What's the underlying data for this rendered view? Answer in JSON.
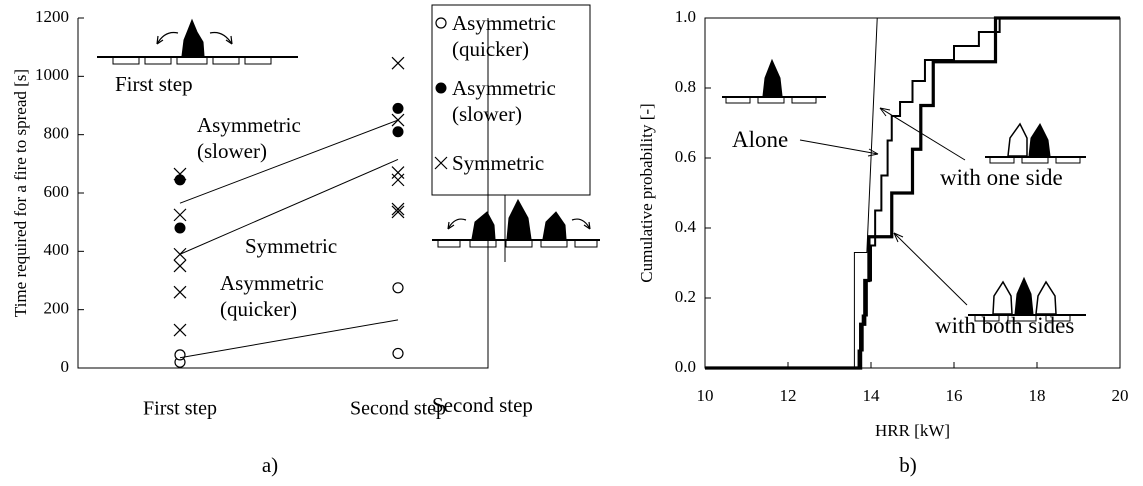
{
  "chart_data": [
    {
      "type": "scatter",
      "ylabel": "Time required for a fire to spread [s]",
      "categories": [
        "First step",
        "Second step"
      ],
      "ylim": [
        0,
        1200
      ],
      "yticks": [
        0,
        200,
        400,
        600,
        800,
        1000,
        1200
      ],
      "series": [
        {
          "name": "Asymmetric (quicker)",
          "marker": "open-circle",
          "color": "#000000",
          "values": [
            [
              20,
              45
            ],
            [
              50,
              275
            ]
          ],
          "trend": [
            35,
            165
          ]
        },
        {
          "name": "Asymmetric (slower)",
          "marker": "filled-circle",
          "color": "#000000",
          "values": [
            [
              480,
              645
            ],
            [
              810,
              890
            ]
          ],
          "trend": [
            565,
            850
          ]
        },
        {
          "name": "Symmetric",
          "marker": "cross",
          "color": "#000000",
          "values": [
            [
              130,
              260,
              350,
              390,
              525,
              665
            ],
            [
              535,
              545,
              645,
              670,
              850,
              1045
            ]
          ],
          "trend": [
            390,
            715
          ]
        }
      ],
      "annotations": [
        "Asymmetric (slower)",
        "Symmetric",
        "Asymmetric (quicker)",
        "First step",
        "Second step"
      ],
      "caption": "a)"
    },
    {
      "type": "line",
      "xlabel": "HRR [kW]",
      "ylabel": "Cumulative probability [-]",
      "xlim": [
        10,
        20
      ],
      "xticks": [
        10,
        12,
        14,
        16,
        18,
        20
      ],
      "ylim": [
        0,
        1
      ],
      "yticks": [
        {
          "value": 0,
          "label": "0.0"
        },
        {
          "value": 0.2,
          "label": "0.2"
        },
        {
          "value": 0.4,
          "label": "0.4"
        },
        {
          "value": 0.6,
          "label": "0.6"
        },
        {
          "value": 0.8,
          "label": "0.8"
        },
        {
          "value": 1,
          "label": "1.0"
        }
      ],
      "series": [
        {
          "name": "Alone",
          "color": "#000000",
          "line_width": 1,
          "x": [
            10,
            13.6,
            13.6,
            13.9,
            14.15,
            20
          ],
          "values": [
            0,
            0,
            0.33,
            0.33,
            1,
            1
          ]
        },
        {
          "name": "with one side",
          "color": "#000000",
          "line_width": 2,
          "x": [
            10,
            13.7,
            13.7,
            13.8,
            13.8,
            13.9,
            13.9,
            14.0,
            14.0,
            14.1,
            14.1,
            14.25,
            14.25,
            14.4,
            14.4,
            14.5,
            14.5,
            14.7,
            14.7,
            15.0,
            15.0,
            15.3,
            15.3,
            16.0,
            16.0,
            16.6,
            16.6,
            17.1,
            17.1,
            20
          ],
          "values": [
            0,
            0,
            0.05,
            0.05,
            0.15,
            0.15,
            0.25,
            0.25,
            0.35,
            0.35,
            0.45,
            0.45,
            0.55,
            0.55,
            0.65,
            0.65,
            0.72,
            0.72,
            0.76,
            0.76,
            0.82,
            0.82,
            0.88,
            0.88,
            0.92,
            0.92,
            0.96,
            0.96,
            1,
            1
          ]
        },
        {
          "name": "with both sides",
          "color": "#000000",
          "line_width": 3.2,
          "x": [
            10,
            13.75,
            13.75,
            13.85,
            13.85,
            13.95,
            13.95,
            14.5,
            14.5,
            15.0,
            15.0,
            15.2,
            15.2,
            15.5,
            15.5,
            17.0,
            17.0,
            20
          ],
          "values": [
            0,
            0,
            0.125,
            0.125,
            0.25,
            0.25,
            0.375,
            0.375,
            0.5,
            0.5,
            0.625,
            0.625,
            0.75,
            0.75,
            0.875,
            0.875,
            1,
            1
          ]
        }
      ],
      "caption": "b)"
    }
  ]
}
